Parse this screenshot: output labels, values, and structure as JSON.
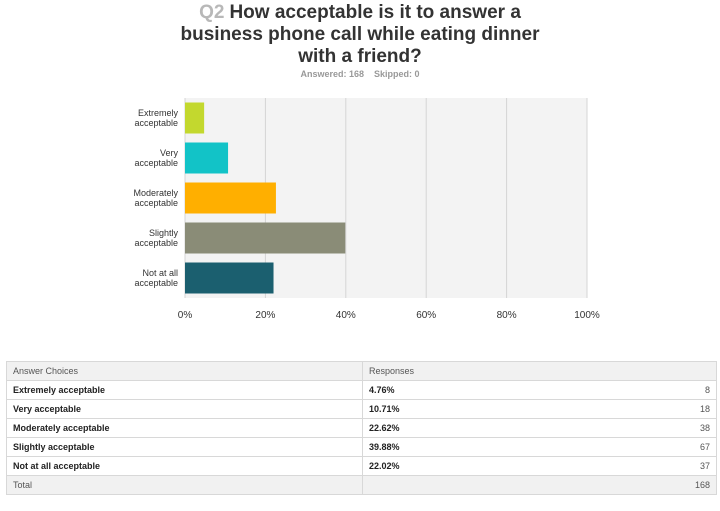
{
  "question": {
    "number": "Q2",
    "text": "How acceptable is it to answer a business phone call while eating dinner with a friend?",
    "title_lines": [
      "How acceptable is it to answer a",
      "business phone call while eating dinner",
      "with a friend?"
    ],
    "answered_label": "Answered: 168",
    "skipped_label": "Skipped: 0"
  },
  "chart_data": {
    "type": "bar",
    "orientation": "horizontal",
    "categories": [
      [
        "Extremely",
        "acceptable"
      ],
      [
        "Very",
        "acceptable"
      ],
      [
        "Moderately",
        "acceptable"
      ],
      [
        "Slightly",
        "acceptable"
      ],
      [
        "Not at all",
        "acceptable"
      ]
    ],
    "values": [
      4.76,
      10.71,
      22.62,
      39.88,
      22.02
    ],
    "colors": [
      "#c3d82e",
      "#12c3c7",
      "#ffaf00",
      "#8a8c77",
      "#1b5f6f"
    ],
    "xlim": [
      0,
      100
    ],
    "xticks": [
      "0%",
      "20%",
      "40%",
      "60%",
      "80%",
      "100%"
    ],
    "grid": true
  },
  "table": {
    "headers": [
      "Answer Choices",
      "Responses"
    ],
    "rows": [
      {
        "choice": "Extremely acceptable",
        "percent": "4.76%",
        "count": "8"
      },
      {
        "choice": "Very acceptable",
        "percent": "10.71%",
        "count": "18"
      },
      {
        "choice": "Moderately acceptable",
        "percent": "22.62%",
        "count": "38"
      },
      {
        "choice": "Slightly acceptable",
        "percent": "39.88%",
        "count": "67"
      },
      {
        "choice": "Not at all acceptable",
        "percent": "22.02%",
        "count": "37"
      }
    ],
    "total_label": "Total",
    "total_value": "168"
  }
}
